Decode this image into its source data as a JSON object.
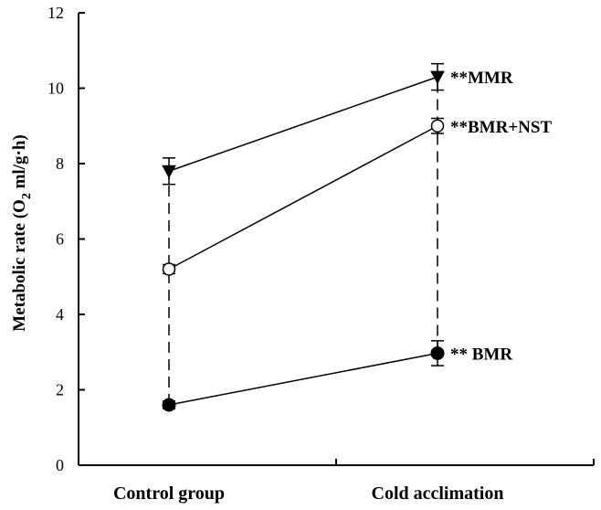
{
  "chart_data": {
    "type": "line",
    "categories": [
      "Control group",
      "Cold acclimation"
    ],
    "ylabel": {
      "prefix": "Metabolic rate (O",
      "sub": "2",
      "suffix": " ml/g·h)"
    },
    "xlabel": "",
    "ylim": [
      0,
      12
    ],
    "yticks": [
      0,
      2,
      4,
      6,
      8,
      10,
      12
    ],
    "grid": false,
    "series": [
      {
        "name": "MMR",
        "label": "**MMR",
        "marker": "triangle-down-filled",
        "values": [
          7.8,
          10.3
        ],
        "errors": [
          0.35,
          0.35
        ]
      },
      {
        "name": "BMR+NST",
        "label": "**BMR+NST",
        "marker": "circle-open",
        "values": [
          5.2,
          9.0
        ],
        "errors": [
          0.12,
          0.2
        ]
      },
      {
        "name": "BMR",
        "label": "** BMR",
        "marker": "circle-filled",
        "values": [
          1.6,
          2.97
        ],
        "errors": [
          0.1,
          0.33
        ]
      }
    ],
    "colors": {
      "line": "#000000",
      "marker_fill": "#000000",
      "open_fill": "#ffffff"
    }
  }
}
